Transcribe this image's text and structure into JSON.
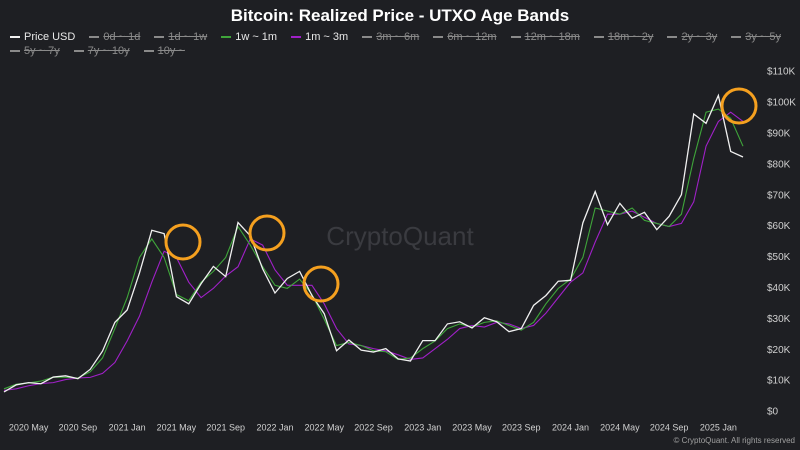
{
  "chart_data": {
    "type": "line",
    "title": "Bitcoin: Realized Price - UTXO Age Bands",
    "watermark": "CryptoQuant",
    "copyright": "© CryptoQuant. All rights reserved",
    "x": [
      "2020-03",
      "2020-04",
      "2020-05",
      "2020-06",
      "2020-07",
      "2020-08",
      "2020-09",
      "2020-10",
      "2020-11",
      "2020-12",
      "2021-01",
      "2021-02",
      "2021-03",
      "2021-04",
      "2021-05",
      "2021-06",
      "2021-07",
      "2021-08",
      "2021-09",
      "2021-10",
      "2021-11",
      "2021-12",
      "2022-01",
      "2022-02",
      "2022-03",
      "2022-04",
      "2022-05",
      "2022-06",
      "2022-07",
      "2022-08",
      "2022-09",
      "2022-10",
      "2022-11",
      "2022-12",
      "2023-01",
      "2023-02",
      "2023-03",
      "2023-04",
      "2023-05",
      "2023-06",
      "2023-07",
      "2023-08",
      "2023-09",
      "2023-10",
      "2023-11",
      "2023-12",
      "2024-01",
      "2024-02",
      "2024-03",
      "2024-04",
      "2024-05",
      "2024-06",
      "2024-07",
      "2024-08",
      "2024-09",
      "2024-10",
      "2024-11",
      "2024-12",
      "2025-01",
      "2025-02",
      "2025-03"
    ],
    "series": [
      {
        "name": "Price USD",
        "color": "#f0f0f0",
        "values": [
          6500,
          8800,
          9500,
          9150,
          11300,
          11700,
          10800,
          13800,
          19700,
          29000,
          33000,
          45000,
          58800,
          57700,
          37300,
          35000,
          41500,
          47100,
          43800,
          61300,
          57000,
          46300,
          38500,
          43200,
          45500,
          37700,
          31800,
          19800,
          23300,
          20000,
          19400,
          20500,
          17200,
          16500,
          23100,
          23100,
          28500,
          29200,
          27200,
          30500,
          29200,
          26000,
          27000,
          34500,
          37700,
          42300,
          42600,
          61200,
          71300,
          60600,
          67500,
          62700,
          64600,
          59000,
          63300,
          70300,
          96400,
          93400,
          102400,
          84300,
          82500
        ]
      },
      {
        "name": "1w ~ 1m",
        "color": "#3fa53a",
        "values": [
          7500,
          9000,
          9400,
          10000,
          11300,
          11200,
          11000,
          13000,
          17500,
          27000,
          37000,
          50000,
          56000,
          50000,
          38000,
          36000,
          42000,
          45500,
          50000,
          60000,
          54000,
          47000,
          41000,
          40000,
          43000,
          38000,
          30000,
          21500,
          22500,
          21500,
          19800,
          19500,
          17000,
          17500,
          20500,
          23000,
          27000,
          28500,
          27500,
          29000,
          29500,
          28000,
          26500,
          29000,
          35000,
          40000,
          43000,
          50000,
          66000,
          65000,
          64000,
          66000,
          62000,
          61000,
          60000,
          64000,
          82000,
          97000,
          98000,
          95000,
          86000
        ]
      },
      {
        "name": "1m ~ 3m",
        "color": "#a020c8",
        "values": [
          7000,
          7500,
          8500,
          9200,
          9500,
          10500,
          11000,
          11200,
          12500,
          16000,
          23000,
          31000,
          42000,
          52000,
          50000,
          42000,
          37000,
          40000,
          44000,
          47000,
          56000,
          54000,
          46000,
          41000,
          41000,
          41000,
          35000,
          27000,
          22000,
          21500,
          20500,
          19800,
          18500,
          17000,
          17500,
          20500,
          23500,
          27000,
          28000,
          27500,
          29000,
          28500,
          27000,
          28000,
          32000,
          37000,
          42000,
          45000,
          55000,
          64000,
          64000,
          65000,
          63000,
          61000,
          60000,
          61000,
          68000,
          86000,
          94000,
          97000,
          94000
        ]
      }
    ],
    "hidden_series": [
      "0d ~ 1d",
      "1d ~ 1w",
      "3m ~ 6m",
      "6m ~ 12m",
      "12m ~ 18m",
      "18m ~ 2y",
      "2y ~ 3y",
      "3y ~ 5y",
      "5y ~ 7y",
      "7y ~ 10y",
      "10y ~"
    ],
    "ylim": [
      0,
      110000
    ],
    "yticks": [
      {
        "value": 0,
        "label": "$0"
      },
      {
        "value": 10000,
        "label": "$10K"
      },
      {
        "value": 20000,
        "label": "$20K"
      },
      {
        "value": 30000,
        "label": "$30K"
      },
      {
        "value": 40000,
        "label": "$40K"
      },
      {
        "value": 50000,
        "label": "$50K"
      },
      {
        "value": 60000,
        "label": "$60K"
      },
      {
        "value": 70000,
        "label": "$70K"
      },
      {
        "value": 80000,
        "label": "$80K"
      },
      {
        "value": 90000,
        "label": "$90K"
      },
      {
        "value": 100000,
        "label": "$100K"
      },
      {
        "value": 110000,
        "label": "$110K"
      }
    ],
    "xticks": [
      {
        "value": "2020-05",
        "label": "2020 May"
      },
      {
        "value": "2020-09",
        "label": "2020 Sep"
      },
      {
        "value": "2021-01",
        "label": "2021 Jan"
      },
      {
        "value": "2021-05",
        "label": "2021 May"
      },
      {
        "value": "2021-09",
        "label": "2021 Sep"
      },
      {
        "value": "2022-01",
        "label": "2022 Jan"
      },
      {
        "value": "2022-05",
        "label": "2022 May"
      },
      {
        "value": "2022-09",
        "label": "2022 Sep"
      },
      {
        "value": "2023-01",
        "label": "2023 Jan"
      },
      {
        "value": "2023-05",
        "label": "2023 May"
      },
      {
        "value": "2023-09",
        "label": "2023 Sep"
      },
      {
        "value": "2024-01",
        "label": "2024 Jan"
      },
      {
        "value": "2024-05",
        "label": "2024 May"
      },
      {
        "value": "2024-09",
        "label": "2024 Sep"
      },
      {
        "value": "2025-01",
        "label": "2025 Jan"
      }
    ],
    "grid": false
  }
}
